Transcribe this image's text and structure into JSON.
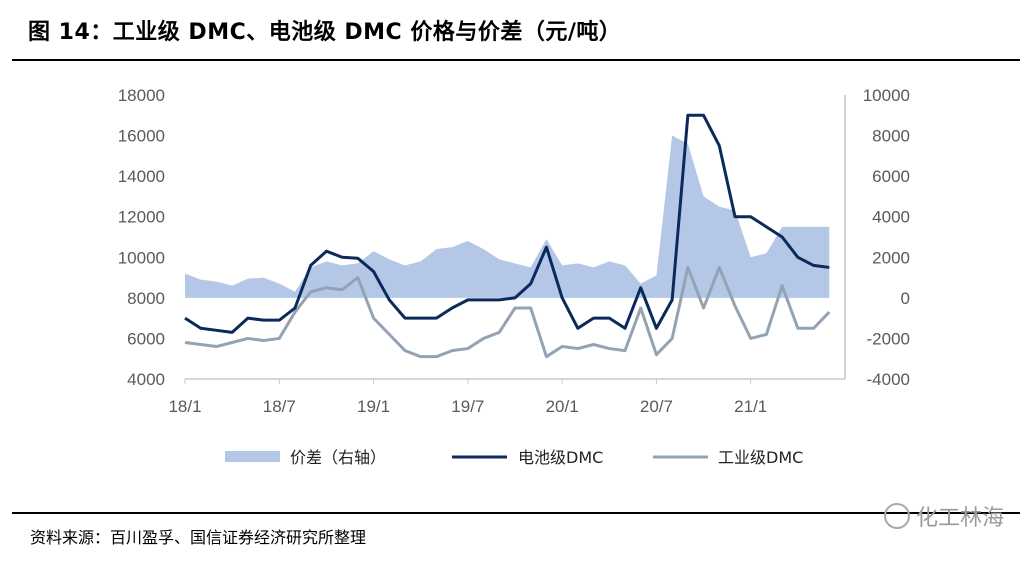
{
  "header": {
    "title": "图 14：工业级 DMC、电池级 DMC 价格与价差（元/吨）"
  },
  "footer": {
    "source": "资料来源：百川盈孚、国信证券经济研究所整理",
    "watermark": "化工林海"
  },
  "colors": {
    "spread": "#b4c7e7",
    "battery": "#0a2a5c",
    "industrial": "#94a3b3",
    "axis_text": "#5a5a5a"
  },
  "chart_data": {
    "type": "line",
    "x_tick_labels": [
      "18/1",
      "18/7",
      "19/1",
      "19/7",
      "20/1",
      "20/7",
      "21/1"
    ],
    "x_range": [
      "2018-01",
      "2021-06"
    ],
    "y_left": {
      "ticks": [
        4000,
        6000,
        8000,
        10000,
        12000,
        14000,
        16000,
        18000
      ],
      "ylim": [
        4000,
        18000
      ]
    },
    "y_right": {
      "ticks": [
        -4000,
        -2000,
        0,
        2000,
        4000,
        6000,
        8000,
        10000
      ],
      "ylim": [
        -4000,
        10000
      ]
    },
    "legend": {
      "position": "bottom",
      "entries": [
        "价差（右轴）",
        "电池级DMC",
        "工业级DMC"
      ]
    },
    "series": [
      {
        "name": "价差（右轴）",
        "type": "area",
        "axis": "right",
        "points": [
          [
            0,
            1200
          ],
          [
            1,
            900
          ],
          [
            2,
            800
          ],
          [
            3,
            600
          ],
          [
            4,
            950
          ],
          [
            5,
            1000
          ],
          [
            6,
            700
          ],
          [
            7,
            300
          ],
          [
            8,
            1500
          ],
          [
            9,
            1800
          ],
          [
            10,
            1600
          ],
          [
            11,
            1700
          ],
          [
            12,
            2300
          ],
          [
            13,
            1900
          ],
          [
            14,
            1600
          ],
          [
            15,
            1800
          ],
          [
            16,
            2400
          ],
          [
            17,
            2500
          ],
          [
            18,
            2800
          ],
          [
            19,
            2400
          ],
          [
            20,
            1900
          ],
          [
            21,
            1700
          ],
          [
            22,
            1500
          ],
          [
            23,
            2900
          ],
          [
            24,
            1600
          ],
          [
            25,
            1700
          ],
          [
            26,
            1500
          ],
          [
            27,
            1800
          ],
          [
            28,
            1600
          ],
          [
            29,
            700
          ],
          [
            30,
            1100
          ],
          [
            31,
            8000
          ],
          [
            32,
            7600
          ],
          [
            33,
            5000
          ],
          [
            34,
            4500
          ],
          [
            35,
            4300
          ],
          [
            36,
            2000
          ],
          [
            37,
            2200
          ],
          [
            38,
            3500
          ],
          [
            39,
            3500
          ],
          [
            40,
            3500
          ],
          [
            41,
            3500
          ]
        ]
      },
      {
        "name": "电池级DMC",
        "type": "line",
        "axis": "left",
        "points": [
          [
            0,
            7000
          ],
          [
            1,
            6500
          ],
          [
            2,
            6400
          ],
          [
            3,
            6300
          ],
          [
            4,
            7000
          ],
          [
            5,
            6900
          ],
          [
            6,
            6900
          ],
          [
            7,
            7500
          ],
          [
            8,
            9600
          ],
          [
            9,
            10300
          ],
          [
            10,
            10000
          ],
          [
            11,
            9950
          ],
          [
            12,
            9300
          ],
          [
            13,
            7900
          ],
          [
            14,
            7000
          ],
          [
            15,
            7000
          ],
          [
            16,
            7000
          ],
          [
            17,
            7500
          ],
          [
            18,
            7900
          ],
          [
            19,
            7900
          ],
          [
            20,
            7900
          ],
          [
            21,
            8000
          ],
          [
            22,
            8700
          ],
          [
            23,
            10500
          ],
          [
            24,
            8000
          ],
          [
            25,
            6500
          ],
          [
            26,
            7000
          ],
          [
            27,
            7000
          ],
          [
            28,
            6500
          ],
          [
            29,
            8500
          ],
          [
            30,
            6500
          ],
          [
            31,
            7900
          ],
          [
            32,
            17000
          ],
          [
            33,
            17000
          ],
          [
            34,
            15500
          ],
          [
            35,
            12000
          ],
          [
            36,
            12000
          ],
          [
            37,
            11500
          ],
          [
            38,
            11000
          ],
          [
            39,
            10000
          ],
          [
            40,
            9600
          ],
          [
            41,
            9500
          ]
        ]
      },
      {
        "name": "工业级DMC",
        "type": "line",
        "axis": "left",
        "points": [
          [
            0,
            5800
          ],
          [
            1,
            5700
          ],
          [
            2,
            5600
          ],
          [
            3,
            5800
          ],
          [
            4,
            6000
          ],
          [
            5,
            5900
          ],
          [
            6,
            6000
          ],
          [
            7,
            7300
          ],
          [
            8,
            8300
          ],
          [
            9,
            8500
          ],
          [
            10,
            8400
          ],
          [
            11,
            9000
          ],
          [
            12,
            7000
          ],
          [
            13,
            6200
          ],
          [
            14,
            5400
          ],
          [
            15,
            5100
          ],
          [
            16,
            5100
          ],
          [
            17,
            5400
          ],
          [
            18,
            5500
          ],
          [
            19,
            6000
          ],
          [
            20,
            6300
          ],
          [
            21,
            7500
          ],
          [
            22,
            7500
          ],
          [
            23,
            5100
          ],
          [
            24,
            5600
          ],
          [
            25,
            5500
          ],
          [
            26,
            5700
          ],
          [
            27,
            5500
          ],
          [
            28,
            5400
          ],
          [
            29,
            7500
          ],
          [
            30,
            5200
          ],
          [
            31,
            6000
          ],
          [
            32,
            9500
          ],
          [
            33,
            7500
          ],
          [
            34,
            9500
          ],
          [
            35,
            7600
          ],
          [
            36,
            6000
          ],
          [
            37,
            6200
          ],
          [
            38,
            8600
          ],
          [
            39,
            6500
          ],
          [
            40,
            6500
          ],
          [
            41,
            7300
          ]
        ]
      }
    ]
  }
}
